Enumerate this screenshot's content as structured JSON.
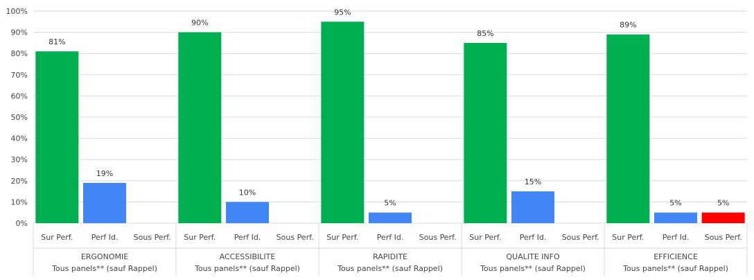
{
  "chart_data": {
    "type": "bar",
    "ylim": [
      0,
      100
    ],
    "yticks": [
      "0%",
      "10%",
      "20%",
      "30%",
      "40%",
      "50%",
      "60%",
      "70%",
      "80%",
      "90%",
      "100%"
    ],
    "grid": true,
    "groups": [
      {
        "name": "ERGONOMIE",
        "subtitle": "Tous panels** (sauf Rappel)",
        "bars": [
          {
            "category": "Sur Perf.",
            "value": 81,
            "label": "81%",
            "color": "#00b050"
          },
          {
            "category": "Perf Id.",
            "value": 19,
            "label": "19%",
            "color": "#4285f4"
          },
          {
            "category": "Sous Perf.",
            "value": 0,
            "label": "",
            "color": "#ff0000"
          }
        ]
      },
      {
        "name": "ACCESSIBILITE",
        "subtitle": "Tous panels** (sauf Rappel)",
        "bars": [
          {
            "category": "Sur Perf.",
            "value": 90,
            "label": "90%",
            "color": "#00b050"
          },
          {
            "category": "Perf Id.",
            "value": 10,
            "label": "10%",
            "color": "#4285f4"
          },
          {
            "category": "Sous Perf.",
            "value": 0,
            "label": "",
            "color": "#ff0000"
          }
        ]
      },
      {
        "name": "RAPIDITE",
        "subtitle": "Tous panels** (sauf Rappel)",
        "bars": [
          {
            "category": "Sur Perf.",
            "value": 95,
            "label": "95%",
            "color": "#00b050"
          },
          {
            "category": "Perf Id.",
            "value": 5,
            "label": "5%",
            "color": "#4285f4"
          },
          {
            "category": "Sous Perf.",
            "value": 0,
            "label": "",
            "color": "#ff0000"
          }
        ]
      },
      {
        "name": "QUALITE INFO",
        "subtitle": "Tous panels** (sauf Rappel)",
        "bars": [
          {
            "category": "Sur Perf.",
            "value": 85,
            "label": "85%",
            "color": "#00b050"
          },
          {
            "category": "Perf Id.",
            "value": 15,
            "label": "15%",
            "color": "#4285f4"
          },
          {
            "category": "Sous Perf.",
            "value": 0,
            "label": "",
            "color": "#ff0000"
          }
        ]
      },
      {
        "name": "EFFICIENCE",
        "subtitle": "Tous panels** (sauf Rappel)",
        "bars": [
          {
            "category": "Sur Perf.",
            "value": 89,
            "label": "89%",
            "color": "#00b050"
          },
          {
            "category": "Perf Id.",
            "value": 5,
            "label": "5%",
            "color": "#4285f4"
          },
          {
            "category": "Sous Perf.",
            "value": 5,
            "label": "5%",
            "color": "#ff0000"
          }
        ]
      }
    ]
  }
}
